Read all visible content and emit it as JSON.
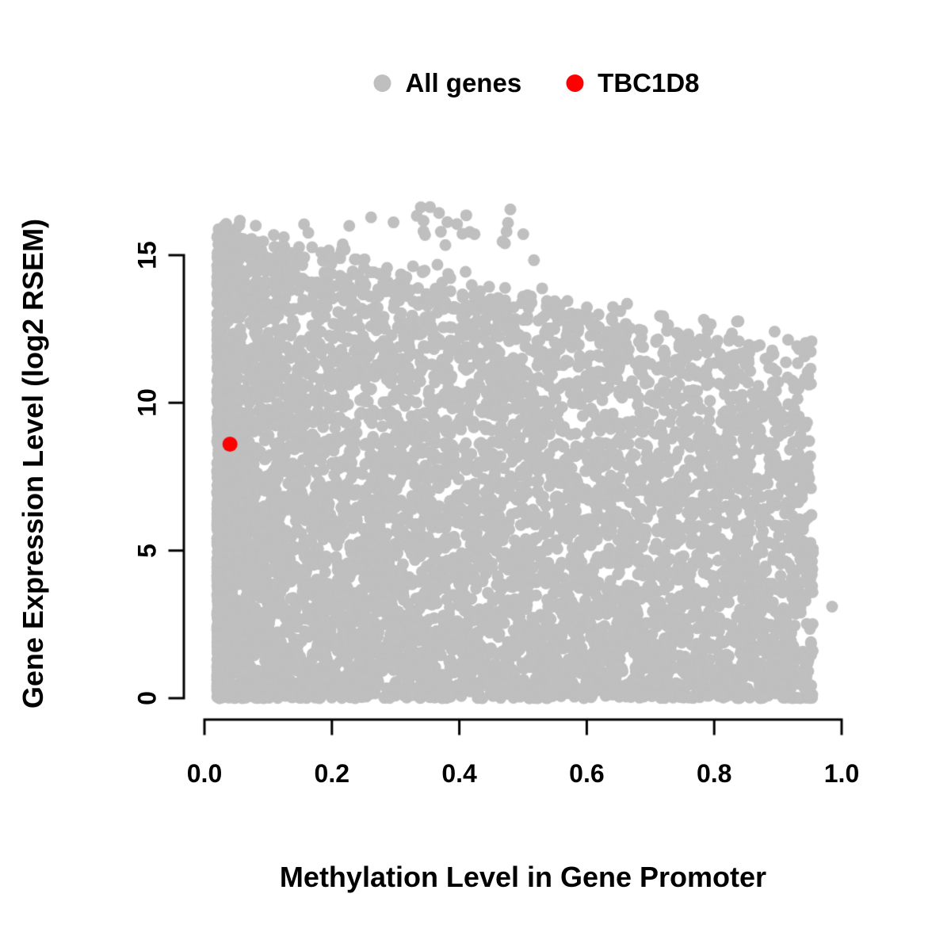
{
  "figure": {
    "background": "#ffffff",
    "legend": {
      "position": "top-center",
      "items": [
        {
          "label": "All genes",
          "color": "#bfbfbf"
        },
        {
          "label": "TBC1D8",
          "color": "#ff0000"
        }
      ]
    },
    "x_axis": {
      "label": "Methylation Level in Gene Promoter",
      "ticks": [
        "0.0",
        "0.2",
        "0.4",
        "0.6",
        "0.8",
        "1.0"
      ],
      "range": [
        0,
        1
      ]
    },
    "y_axis": {
      "label": "Gene Expression Level (log2 RSEM)",
      "ticks": [
        "0",
        "5",
        "10",
        "15"
      ],
      "range": [
        0,
        16.7
      ]
    }
  },
  "chart_data": {
    "type": "scatter",
    "title": "",
    "xlabel": "Methylation Level in Gene Promoter",
    "ylabel": "Gene Expression Level (log2 RSEM)",
    "xlim": [
      0,
      1
    ],
    "ylim": [
      0,
      16.7
    ],
    "x_ticks": [
      0.0,
      0.2,
      0.4,
      0.6,
      0.8,
      1.0
    ],
    "y_ticks": [
      0,
      5,
      10,
      15
    ],
    "grid": false,
    "legend_position": "top-center",
    "series": [
      {
        "name": "All genes",
        "color": "#bfbfbf",
        "marker": "filled-circle",
        "n_points": 7000,
        "n_top_outliers": 45,
        "seed": 42,
        "x_range": [
          0.02,
          0.955
        ],
        "y_range": [
          0,
          16.7
        ],
        "distribution": "dense gray cloud of all genes; density highest at low promoter methylation and near expression 0; upper envelope of expression declines from ~16 at methylation 0 to ~12 at methylation 0.95; sparse points reach ~16.6 at methylation < 0.4",
        "extra_points": [
          [
            0.985,
            3.1
          ]
        ]
      },
      {
        "name": "TBC1D8",
        "color": "#ff0000",
        "marker": "filled-circle",
        "points": [
          [
            0.04,
            8.6
          ]
        ]
      }
    ]
  }
}
